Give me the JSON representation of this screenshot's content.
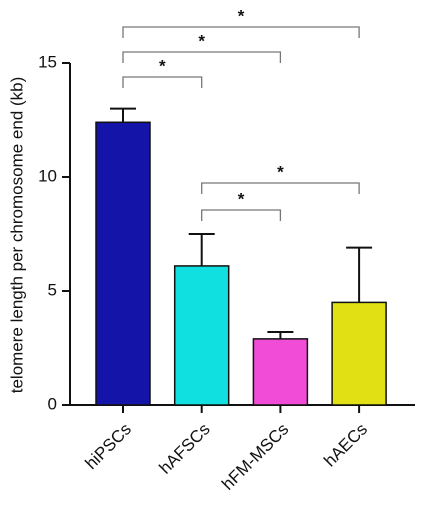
{
  "chart_data": {
    "type": "bar",
    "y_label": "telomere length per chromosome end (kb)",
    "categories": [
      "hiPSCs",
      "hAFSCs",
      "hFM-MSCs",
      "hAECs"
    ],
    "values": [
      12.4,
      6.1,
      2.9,
      4.5
    ],
    "errors": [
      0.6,
      1.4,
      0.3,
      2.4
    ],
    "colors": [
      "#1414a8",
      "#10e0e0",
      "#f04cd8",
      "#e0e014"
    ],
    "ylim": [
      0,
      15
    ],
    "yticks": [
      0,
      5,
      10,
      15
    ],
    "annotations": [
      {
        "from": "hiPSCs",
        "to": "hAFSCs",
        "label": "*"
      },
      {
        "from": "hiPSCs",
        "to": "hFM-MSCs",
        "label": "*"
      },
      {
        "from": "hiPSCs",
        "to": "hAECs",
        "label": "*"
      },
      {
        "from": "hAFSCs",
        "to": "hAECs",
        "label": "*"
      },
      {
        "from": "hAFSCs",
        "to": "hFM-MSCs",
        "label": "*"
      }
    ]
  }
}
